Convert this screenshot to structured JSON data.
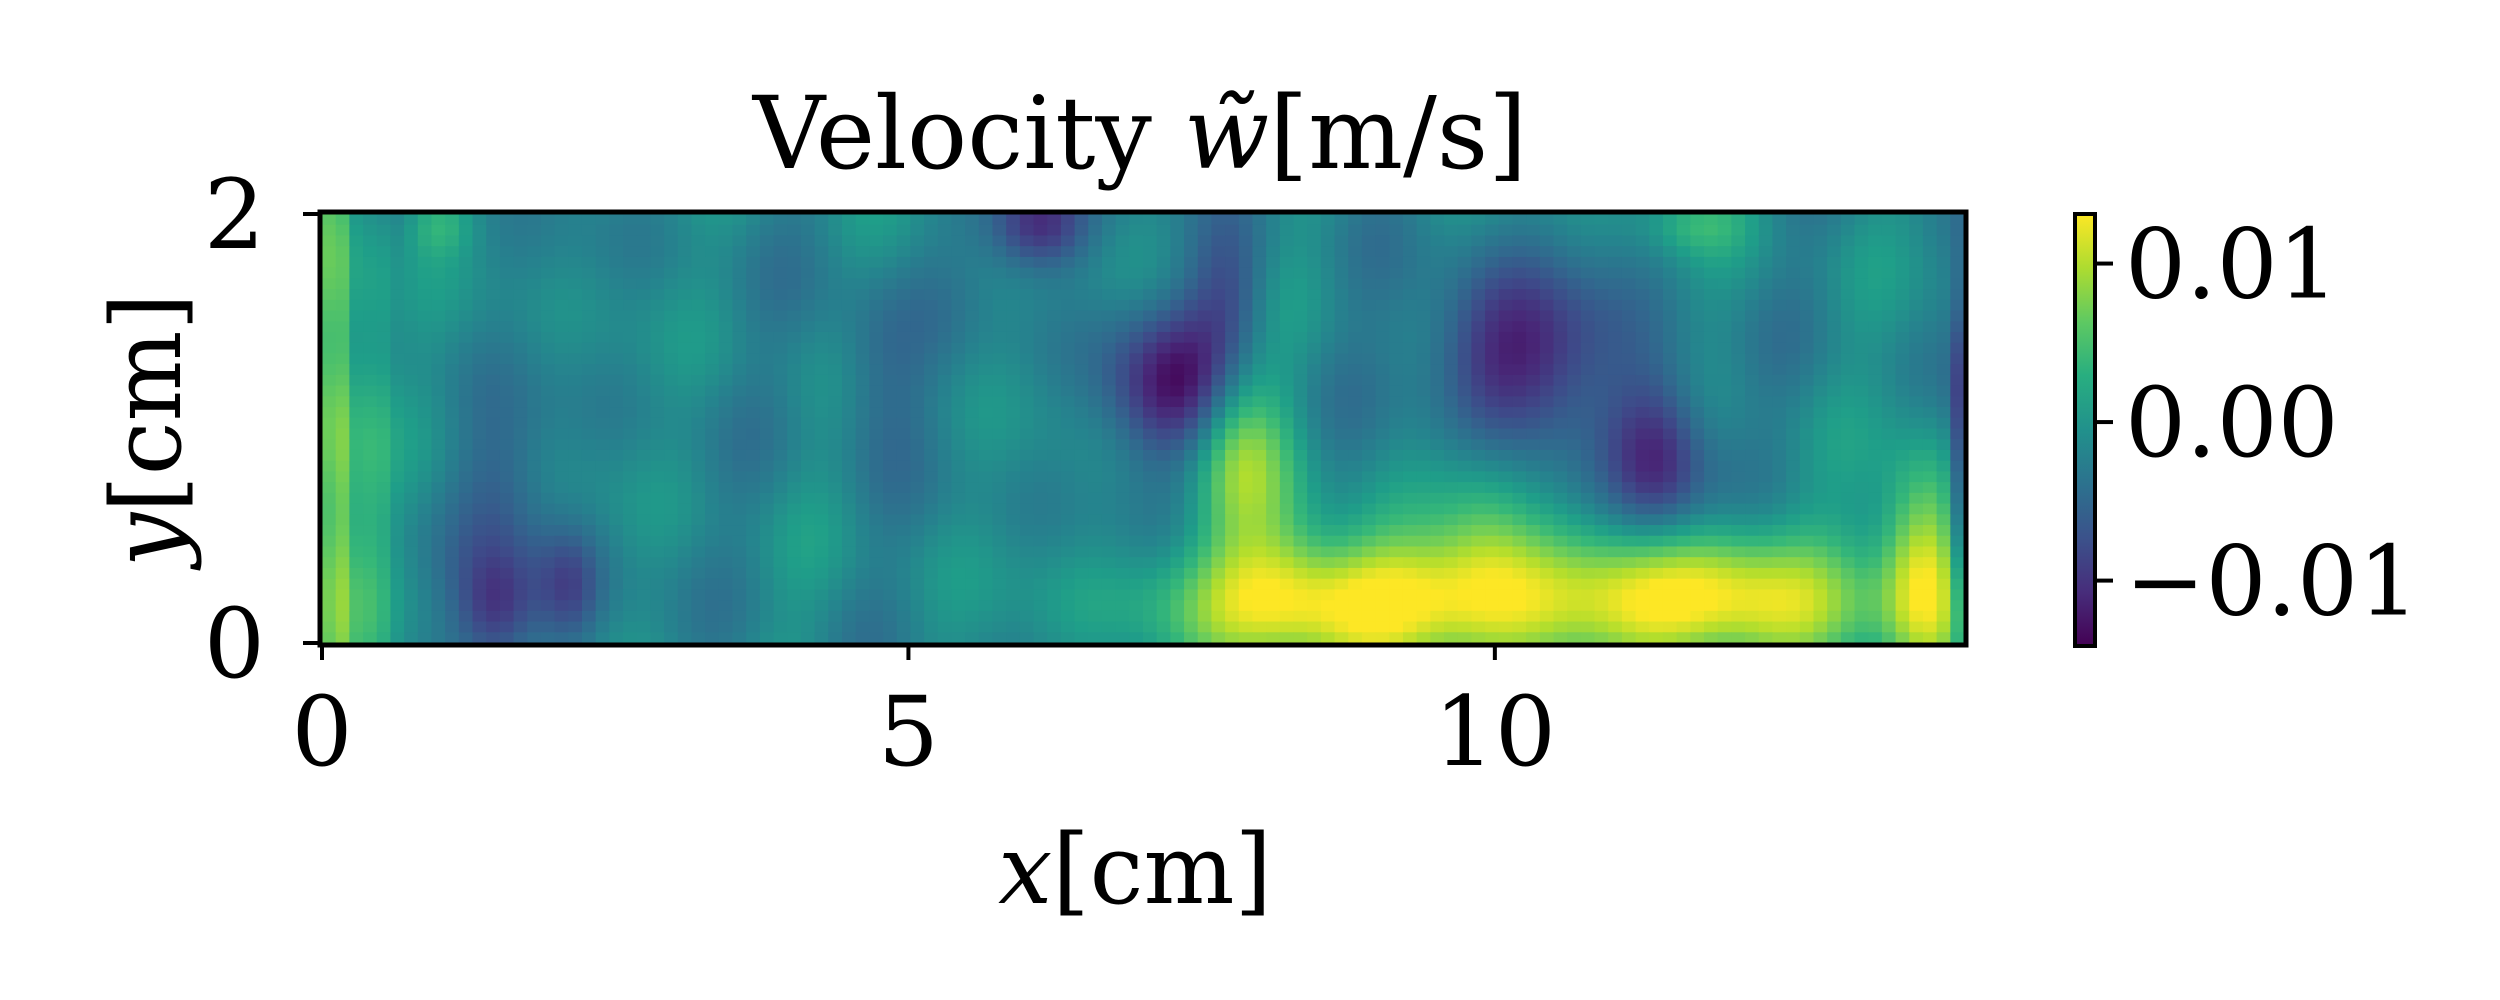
{
  "chart_data": {
    "type": "heatmap",
    "title_prefix": "Velocity ",
    "title_symbol": "w̃",
    "title_units": "[m/s]",
    "xlabel_var": "x",
    "xlabel_units": "[cm]",
    "ylabel_var": "y",
    "ylabel_units": "[cm]",
    "xlim": [
      0,
      14
    ],
    "ylim": [
      0,
      2
    ],
    "xticks": [
      0,
      5,
      10
    ],
    "yticks": [
      0,
      2
    ],
    "xtick_labels": [
      "0",
      "5",
      "10"
    ],
    "ytick_labels": [
      "0",
      "2"
    ],
    "colormap": "viridis",
    "colorbar": {
      "vmin": -0.014,
      "vmax": 0.013,
      "ticks": [
        0.01,
        0.0,
        -0.01
      ],
      "tick_labels": [
        "0.01",
        "0.00",
        "−0.01"
      ]
    },
    "field_description": "approximate velocity field; mostly near 0 with positive band near y=0.2 for x in 8–12 cm and negative pockets around (7.3,1.2), (10.2,1.35), (11.4,0.85)",
    "base_value": -0.0015,
    "features": [
      {
        "x": 0.12,
        "y": 1.0,
        "sx": 0.12,
        "sy": 1.4,
        "amp": 0.011
      },
      {
        "x": 0.45,
        "y": 1.0,
        "sx": 0.1,
        "sy": 1.4,
        "amp": 0.004
      },
      {
        "x": 10.6,
        "y": 0.18,
        "sx": 1.9,
        "sy": 0.22,
        "amp": 0.0125
      },
      {
        "x": 8.5,
        "y": 0.2,
        "sx": 0.9,
        "sy": 0.2,
        "amp": 0.008
      },
      {
        "x": 12.0,
        "y": 0.25,
        "sx": 0.6,
        "sy": 0.25,
        "amp": 0.006
      },
      {
        "x": 13.65,
        "y": 0.35,
        "sx": 0.25,
        "sy": 0.35,
        "amp": 0.013
      },
      {
        "x": 7.8,
        "y": 0.95,
        "sx": 0.28,
        "sy": 0.35,
        "amp": 0.009
      },
      {
        "x": 9.9,
        "y": 0.55,
        "sx": 0.3,
        "sy": 0.3,
        "amp": 0.005
      },
      {
        "x": 7.3,
        "y": 1.2,
        "sx": 0.45,
        "sy": 0.25,
        "amp": -0.0105
      },
      {
        "x": 7.75,
        "y": 1.6,
        "sx": 0.25,
        "sy": 0.25,
        "amp": -0.006
      },
      {
        "x": 10.2,
        "y": 1.35,
        "sx": 0.55,
        "sy": 0.28,
        "amp": -0.0105
      },
      {
        "x": 11.4,
        "y": 0.85,
        "sx": 0.3,
        "sy": 0.3,
        "amp": -0.01
      },
      {
        "x": 6.1,
        "y": 1.95,
        "sx": 0.3,
        "sy": 0.15,
        "amp": -0.01
      },
      {
        "x": 1.5,
        "y": 0.15,
        "sx": 0.25,
        "sy": 0.2,
        "amp": -0.008
      },
      {
        "x": 2.1,
        "y": 0.25,
        "sx": 0.2,
        "sy": 0.2,
        "amp": -0.006
      },
      {
        "x": 1.55,
        "y": 0.7,
        "sx": 0.3,
        "sy": 0.3,
        "amp": -0.004
      },
      {
        "x": 14.0,
        "y": 0.8,
        "sx": 0.08,
        "sy": 0.6,
        "amp": -0.009
      },
      {
        "x": 4.7,
        "y": 1.3,
        "sx": 0.3,
        "sy": 0.3,
        "amp": -0.004
      },
      {
        "x": 1.0,
        "y": 1.95,
        "sx": 0.2,
        "sy": 0.1,
        "amp": 0.004
      },
      {
        "x": 11.7,
        "y": 1.95,
        "sx": 0.3,
        "sy": 0.1,
        "amp": 0.004
      },
      {
        "x": 8.2,
        "y": 0.5,
        "sx": 0.3,
        "sy": 0.4,
        "amp": 0.004
      }
    ]
  }
}
